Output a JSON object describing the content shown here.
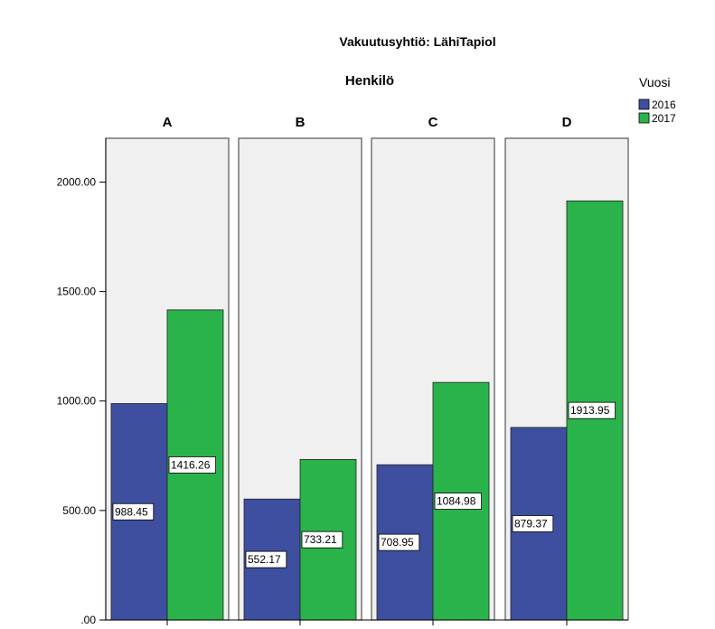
{
  "chart_data": {
    "type": "bar",
    "title": "Vakuutusyhtiö: LähiTapiol",
    "subtitle": "Henkilö",
    "panels": [
      "A",
      "B",
      "C",
      "D"
    ],
    "series": [
      {
        "name": "2016",
        "color": "#3e4fa0",
        "values": [
          988.45,
          552.17,
          708.95,
          879.37
        ]
      },
      {
        "name": "2017",
        "color": "#2ab34a",
        "values": [
          1416.26,
          733.21,
          1084.98,
          1913.95
        ]
      }
    ],
    "data_labels": {
      "2016": [
        "988.45",
        "552.17",
        "708.95",
        "879.37"
      ],
      "2017": [
        "1416.26",
        "733.21",
        "1084.98",
        "1913.95"
      ]
    },
    "ylim": [
      0,
      2200
    ],
    "yticks": [
      0,
      500,
      1000,
      1500,
      2000
    ],
    "ytick_labels": [
      ".00",
      "500.00",
      "1000.00",
      "1500.00",
      "2000.00"
    ],
    "xlabel": "",
    "ylabel": "",
    "legend": {
      "title": "Vuosi",
      "position": "top-right"
    },
    "panel_background": "#f0f0f0",
    "grid": false
  }
}
